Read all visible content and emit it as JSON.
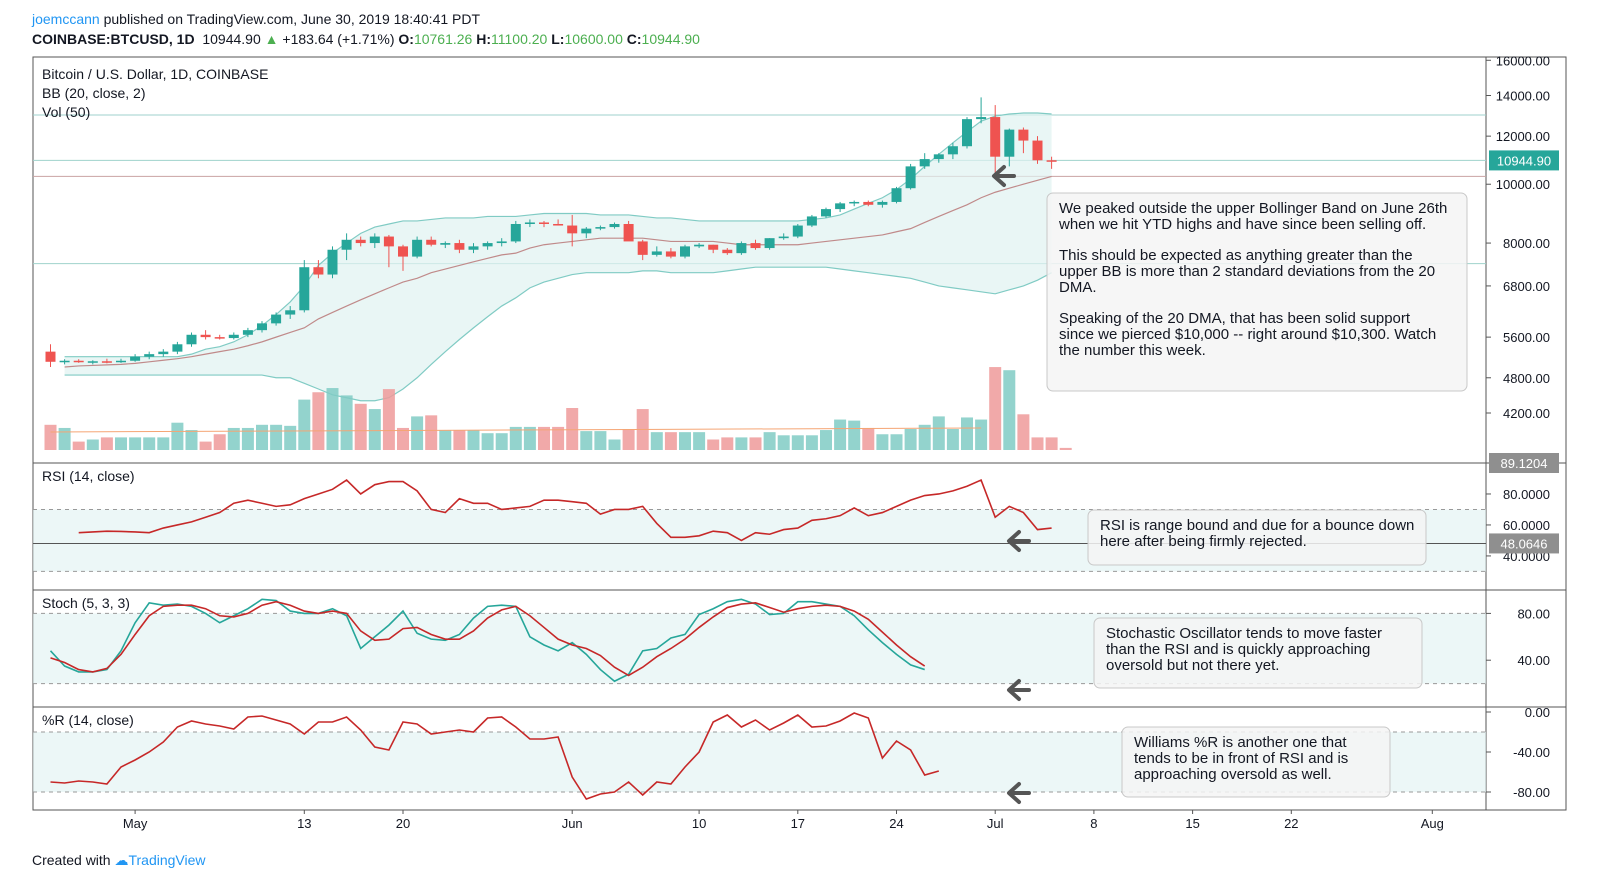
{
  "header": {
    "user": "joemccann",
    "published": "published on TradingView.com, June 30, 2019 18:40:41 PDT",
    "symbol": "COINBASE:BTCUSD, 1D",
    "last": "10944.90",
    "up_arrow": "▲",
    "change": "+183.64 (+1.71%)",
    "o_label": "O:",
    "o": "10761.26",
    "h_label": "H:",
    "h": "11100.20",
    "l_label": "L:",
    "l": "10600.00",
    "c_label": "C:",
    "c": "10944.90"
  },
  "footer": {
    "created": "Created with",
    "brand": "TradingView"
  },
  "colors": {
    "up": "#26a69a",
    "down": "#ef5350",
    "grid": "#b2dfdb",
    "band_fill": "#e0f2f1",
    "accent": "#2196f3"
  },
  "chart_data": {
    "type": "candlestick",
    "title": "Bitcoin / U.S. Dollar, 1D, COINBASE",
    "bb_label": "BB (20, close, 2)",
    "vol_label": "Vol (50)",
    "price_label": "10944.90",
    "x_labels": [
      "May",
      "13",
      "20",
      "Jun",
      "10",
      "17",
      "24",
      "Jul",
      "8",
      "15",
      "22",
      "Aug"
    ],
    "x_label_index": [
      0,
      12,
      19,
      31,
      40,
      47,
      54,
      61,
      68,
      75,
      82,
      92
    ],
    "first_index": -6,
    "price_ticks": [
      16000,
      14000,
      12000,
      10000,
      8000,
      6800,
      5600,
      4800,
      4200
    ],
    "price_tick_labels": [
      "16000.00",
      "14000.00",
      "12000.00",
      "10000.00",
      "8000.00",
      "6800.00",
      "5600.00",
      "4800.00",
      "4200.00"
    ],
    "price_range": [
      3650,
      16200
    ],
    "hlines": [
      13000,
      10944.9,
      10300,
      7400
    ],
    "candles": [
      [
        5300,
        5450,
        5000,
        5100
      ],
      [
        5100,
        5150,
        5050,
        5120
      ],
      [
        5120,
        5150,
        5080,
        5100
      ],
      [
        5100,
        5130,
        5050,
        5110
      ],
      [
        5110,
        5160,
        5070,
        5100
      ],
      [
        5100,
        5160,
        5080,
        5120
      ],
      [
        5120,
        5250,
        5100,
        5200
      ],
      [
        5200,
        5300,
        5150,
        5250
      ],
      [
        5250,
        5350,
        5200,
        5300
      ],
      [
        5300,
        5500,
        5250,
        5450
      ],
      [
        5450,
        5700,
        5400,
        5650
      ],
      [
        5650,
        5750,
        5550,
        5600
      ],
      [
        5600,
        5650,
        5550,
        5580
      ],
      [
        5580,
        5700,
        5550,
        5650
      ],
      [
        5650,
        5800,
        5600,
        5750
      ],
      [
        5750,
        5950,
        5700,
        5900
      ],
      [
        5900,
        6150,
        5850,
        6100
      ],
      [
        6100,
        6300,
        6000,
        6200
      ],
      [
        6200,
        7500,
        6150,
        7300
      ],
      [
        7300,
        7500,
        7000,
        7100
      ],
      [
        7100,
        7900,
        7000,
        7800
      ],
      [
        7800,
        8300,
        7500,
        8100
      ],
      [
        8100,
        8200,
        7900,
        8000
      ],
      [
        8000,
        8300,
        7850,
        8200
      ],
      [
        8200,
        8250,
        7300,
        7900
      ],
      [
        7900,
        7950,
        7200,
        7600
      ],
      [
        7600,
        8200,
        7550,
        8100
      ],
      [
        8100,
        8200,
        7900,
        7950
      ],
      [
        7950,
        8050,
        7850,
        8000
      ],
      [
        8000,
        8100,
        7700,
        7800
      ],
      [
        7800,
        8000,
        7700,
        7900
      ],
      [
        7900,
        8050,
        7800,
        8000
      ],
      [
        8000,
        8150,
        7900,
        8050
      ],
      [
        8050,
        8700,
        8000,
        8600
      ],
      [
        8600,
        8750,
        8500,
        8650
      ],
      [
        8650,
        8700,
        8500,
        8600
      ],
      [
        8600,
        8750,
        8550,
        8550
      ],
      [
        8550,
        8900,
        7900,
        8300
      ],
      [
        8300,
        8500,
        8150,
        8450
      ],
      [
        8450,
        8550,
        8400,
        8500
      ],
      [
        8500,
        8650,
        8450,
        8600
      ],
      [
        8600,
        8700,
        8100,
        8050
      ],
      [
        8050,
        8100,
        7500,
        7650
      ],
      [
        7650,
        7900,
        7600,
        7750
      ],
      [
        7750,
        7850,
        7550,
        7600
      ],
      [
        7600,
        7950,
        7550,
        7900
      ],
      [
        7900,
        8000,
        7850,
        7950
      ],
      [
        7950,
        7950,
        7700,
        7800
      ],
      [
        7800,
        7850,
        7650,
        7700
      ],
      [
        7700,
        8050,
        7650,
        8000
      ],
      [
        8000,
        8100,
        7800,
        7850
      ],
      [
        7850,
        8150,
        7800,
        8150
      ],
      [
        8150,
        8300,
        8100,
        8200
      ],
      [
        8200,
        8600,
        8150,
        8550
      ],
      [
        8550,
        8900,
        8500,
        8850
      ],
      [
        8850,
        9150,
        8800,
        9100
      ],
      [
        9100,
        9350,
        9000,
        9300
      ],
      [
        9300,
        9400,
        9200,
        9350
      ],
      [
        9350,
        9400,
        9200,
        9250
      ],
      [
        9250,
        9400,
        9150,
        9350
      ],
      [
        9350,
        9900,
        9300,
        9850
      ],
      [
        9850,
        10800,
        9800,
        10700
      ],
      [
        10700,
        11250,
        10600,
        11000
      ],
      [
        11000,
        11250,
        10850,
        11200
      ],
      [
        11200,
        11700,
        11000,
        11550
      ],
      [
        11550,
        12900,
        11450,
        12800
      ],
      [
        12800,
        13900,
        12600,
        12900
      ],
      [
        12900,
        13500,
        10400,
        11100
      ],
      [
        11100,
        12350,
        10700,
        12300
      ],
      [
        12300,
        12400,
        11250,
        11800
      ],
      [
        11800,
        12000,
        10800,
        10950
      ],
      [
        10950,
        11100,
        10600,
        10944.9
      ]
    ],
    "bb_upper": [
      5200,
      5200,
      5200,
      5200,
      5200,
      5200,
      5200,
      5200,
      5200,
      5250,
      5350,
      5400,
      5500,
      5650,
      5850,
      6100,
      6400,
      6800,
      7350,
      7700,
      8000,
      8300,
      8500,
      8600,
      8700,
      8700,
      8750,
      8800,
      8800,
      8800,
      8850,
      8850,
      8850,
      8900,
      8950,
      8950,
      8950,
      8950,
      8900,
      8900,
      8900,
      8850,
      8800,
      8800,
      8750,
      8700,
      8700,
      8700,
      8700,
      8700,
      8700,
      8700,
      8700,
      8750,
      8800,
      8900,
      9100,
      9300,
      9500,
      9800,
      10200,
      10700,
      11200,
      11700,
      12200,
      12700,
      12950,
      13050,
      13100,
      13100,
      13050
    ],
    "bb_basis": [
      5000,
      5020,
      5030,
      5040,
      5050,
      5070,
      5100,
      5130,
      5160,
      5200,
      5250,
      5300,
      5350,
      5420,
      5500,
      5600,
      5700,
      5800,
      6000,
      6150,
      6300,
      6450,
      6600,
      6750,
      6900,
      7000,
      7150,
      7250,
      7350,
      7450,
      7550,
      7650,
      7700,
      7850,
      7950,
      8000,
      8050,
      8100,
      8150,
      8150,
      8150,
      8150,
      8100,
      8050,
      8050,
      8050,
      8050,
      8000,
      7950,
      7950,
      7950,
      7950,
      7950,
      8000,
      8050,
      8100,
      8150,
      8200,
      8250,
      8350,
      8450,
      8650,
      8850,
      9050,
      9250,
      9500,
      9700,
      9850,
      10000,
      10150,
      10300
    ],
    "bb_lower": [
      4850,
      4850,
      4850,
      4850,
      4850,
      4850,
      4850,
      4850,
      4850,
      4850,
      4850,
      4850,
      4850,
      4850,
      4850,
      4800,
      4800,
      4700,
      4600,
      4500,
      4450,
      4400,
      4400,
      4450,
      4600,
      4800,
      5050,
      5300,
      5550,
      5800,
      6050,
      6300,
      6500,
      6750,
      6900,
      7000,
      7100,
      7150,
      7150,
      7150,
      7150,
      7200,
      7200,
      7150,
      7150,
      7150,
      7150,
      7200,
      7250,
      7300,
      7300,
      7300,
      7300,
      7300,
      7300,
      7250,
      7200,
      7150,
      7100,
      7050,
      7000,
      6900,
      6800,
      6750,
      6700,
      6650,
      6600,
      6700,
      6800,
      6950,
      7150
    ],
    "volume": [
      24,
      21,
      8,
      10,
      12,
      12,
      12,
      12,
      12,
      26,
      19,
      8,
      15,
      21,
      21,
      24,
      24,
      23,
      48,
      55,
      59,
      52,
      44,
      39,
      58,
      21,
      32,
      33,
      19,
      19,
      19,
      16,
      16,
      22,
      22,
      22,
      22,
      40,
      18,
      18,
      10,
      20,
      39,
      17,
      17,
      17,
      17,
      10,
      12,
      12,
      12,
      17,
      14,
      14,
      14,
      19,
      29,
      28,
      21,
      15,
      15,
      20,
      24,
      32,
      20,
      31,
      29,
      79,
      76,
      34,
      12,
      12,
      2
    ],
    "volume_max": 100,
    "rsi": {
      "label": "RSI (14, close)",
      "range": [
        18,
        100
      ],
      "ticks": [
        80,
        60,
        40
      ],
      "tick_labels": [
        "80.0000",
        "60.0000",
        "40.0000"
      ],
      "band": [
        70,
        30
      ],
      "current_label": "48.0646",
      "current_value": 48.06,
      "max_label": "89.1204",
      "values": [
        55,
        55.5,
        56,
        55.8,
        55.5,
        55,
        58,
        60,
        62,
        65,
        68,
        74,
        76,
        74,
        72,
        73,
        77,
        80,
        83,
        89,
        80,
        86,
        88,
        88,
        82,
        70,
        68,
        77,
        74,
        74,
        70,
        71,
        72,
        76,
        76,
        75,
        74,
        67,
        70,
        70,
        72,
        61,
        52,
        52,
        53,
        56,
        55,
        50,
        55,
        54,
        57,
        58,
        63,
        64,
        66,
        71,
        66,
        68,
        72,
        76,
        79,
        80,
        82,
        85,
        89,
        65,
        72,
        68,
        57,
        58
      ],
      "first_index": -4
    },
    "stoch": {
      "label": "Stoch (5, 3, 3)",
      "range": [
        0,
        100
      ],
      "ticks": [
        80,
        40
      ],
      "tick_labels": [
        "80.00",
        "40.00"
      ],
      "band": [
        80,
        20
      ],
      "k": [
        48,
        35,
        30,
        30,
        32,
        48,
        72,
        89,
        87,
        88,
        86,
        80,
        72,
        78,
        84,
        92,
        91,
        82,
        80,
        80,
        84,
        78,
        50,
        60,
        70,
        82,
        63,
        58,
        57,
        62,
        76,
        86,
        87,
        86,
        60,
        53,
        48,
        55,
        45,
        32,
        22,
        28,
        48,
        50,
        59,
        62,
        79,
        84,
        90,
        92,
        88,
        79,
        80,
        90,
        90,
        88,
        86,
        78,
        66,
        55,
        45,
        36,
        32
      ],
      "d": [
        42,
        38,
        32,
        30,
        33,
        45,
        62,
        78,
        86,
        87,
        87,
        84,
        78,
        77,
        80,
        87,
        90,
        87,
        82,
        80,
        82,
        80,
        65,
        57,
        58,
        67,
        68,
        62,
        58,
        58,
        65,
        76,
        83,
        86,
        78,
        68,
        58,
        53,
        50,
        44,
        34,
        27,
        34,
        43,
        50,
        58,
        68,
        77,
        85,
        88,
        89,
        85,
        81,
        84,
        86,
        87,
        86,
        82,
        75,
        64,
        53,
        43,
        35
      ],
      "first_index": -6
    },
    "willr": {
      "label": "%R (14, close)",
      "range": [
        -98,
        5
      ],
      "ticks": [
        0,
        -40,
        -80
      ],
      "tick_labels": [
        "0.00",
        "-40.00",
        "-80.00"
      ],
      "band": [
        -20,
        -80
      ],
      "values": [
        -70,
        -71,
        -69,
        -70,
        -72,
        -55,
        -48,
        -40,
        -30,
        -15,
        -9,
        -12,
        -14,
        -17,
        -5,
        -4,
        -8,
        -12,
        -22,
        -10,
        -10,
        -5,
        -18,
        -35,
        -38,
        -10,
        -12,
        -22,
        -20,
        -18,
        -20,
        -6,
        -5,
        -15,
        -27,
        -27,
        -25,
        -65,
        -87,
        -82,
        -80,
        -70,
        -83,
        -70,
        -72,
        -55,
        -40,
        -10,
        -3,
        -15,
        -8,
        -18,
        -11,
        -3,
        -15,
        -14,
        -9,
        -1,
        -6,
        -46,
        -29,
        -38,
        -63,
        -59
      ],
      "first_index": -6
    },
    "annotations": [
      "We peaked outside the upper Bollinger Band on June 26th when we hit YTD highs and have since been selling off.",
      "This should be expected as anything greater than the upper BB is more than 2 standard deviations from the 20 DMA.",
      "Speaking of the 20 DMA, that has been solid support since we pierced $10,000 -- right around $10,300. Watch the number this week.",
      "RSI is range bound and due for a bounce down here after being firmly rejected.",
      "Stochastic Oscillator tends to move faster than the RSI and is quickly approaching oversold but not there yet.",
      "Williams %R is another one that tends to be in front of RSI and is approaching oversold as well."
    ]
  }
}
